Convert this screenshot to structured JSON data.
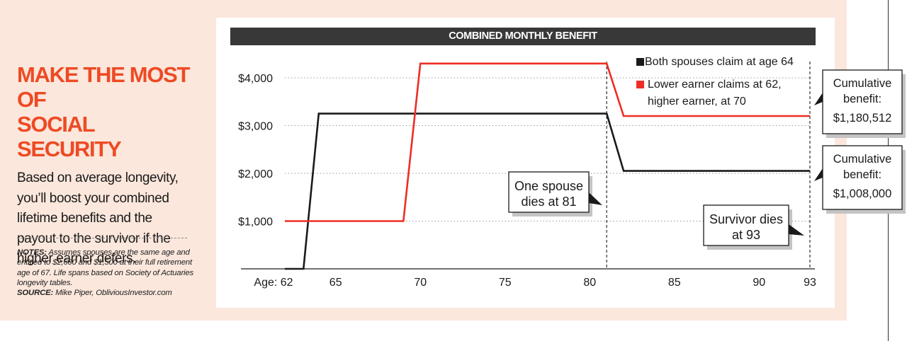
{
  "headline": "MAKE THE MOST OF\nSOCIAL SECURITY",
  "dek": "Based on average longevity, you’ll boost your combined lifetime benefits and the payout to the survivor if the higher earner defers.",
  "notes": {
    "notes_label": "NOTES:",
    "notes_text": "Assumes spouses are the same age and entitled to $2,600 and $1,500 at their full retirement age of 67. Life spans based on Society of Actuaries longevity tables.",
    "source_label": "SOURCE:",
    "source_text": "Mike Piper, ObliviousInvestor.com"
  },
  "chart_data": {
    "type": "line",
    "title": "COMBINED MONTHLY BENEFIT",
    "xlim": [
      62,
      93
    ],
    "ylim": [
      0,
      4000
    ],
    "x_tick_prefix": "Age: ",
    "x_ticks": [
      62,
      65,
      70,
      75,
      80,
      85,
      90,
      93
    ],
    "y_ticks": [
      1000,
      2000,
      3000,
      4000
    ],
    "y_tick_labels": [
      "$1,000",
      "$2,000",
      "$3,000",
      "$4,000"
    ],
    "grid": "horizontal dotted",
    "legend_position": "top-right",
    "series": [
      {
        "name": "Both spouses claim at age 64",
        "color": "#1a1a1a",
        "points": [
          [
            62,
            0
          ],
          [
            63.1,
            0
          ],
          [
            64,
            3250
          ],
          [
            81,
            3250
          ],
          [
            82,
            2050
          ],
          [
            93,
            2050
          ]
        ]
      },
      {
        "name": "Lower earner claims at 62, higher earner, at 70",
        "color": "#ee2d24",
        "points": [
          [
            62,
            1000
          ],
          [
            69,
            1000
          ],
          [
            70,
            4300
          ],
          [
            81,
            4300
          ],
          [
            82,
            3200
          ],
          [
            93,
            3200
          ]
        ]
      }
    ],
    "events": [
      {
        "x": 81,
        "label": "One spouse dies at 81"
      },
      {
        "x": 93,
        "label": "Survivor dies at 93"
      }
    ],
    "cumulative": [
      {
        "label": "Cumulative benefit:",
        "value": "$1,180,512",
        "color": "#ee2d24",
        "series_y": 3200
      },
      {
        "label": "Cumulative benefit:",
        "value": "$1,008,000",
        "color": "#1a1a1a",
        "series_y": 2050
      }
    ]
  }
}
